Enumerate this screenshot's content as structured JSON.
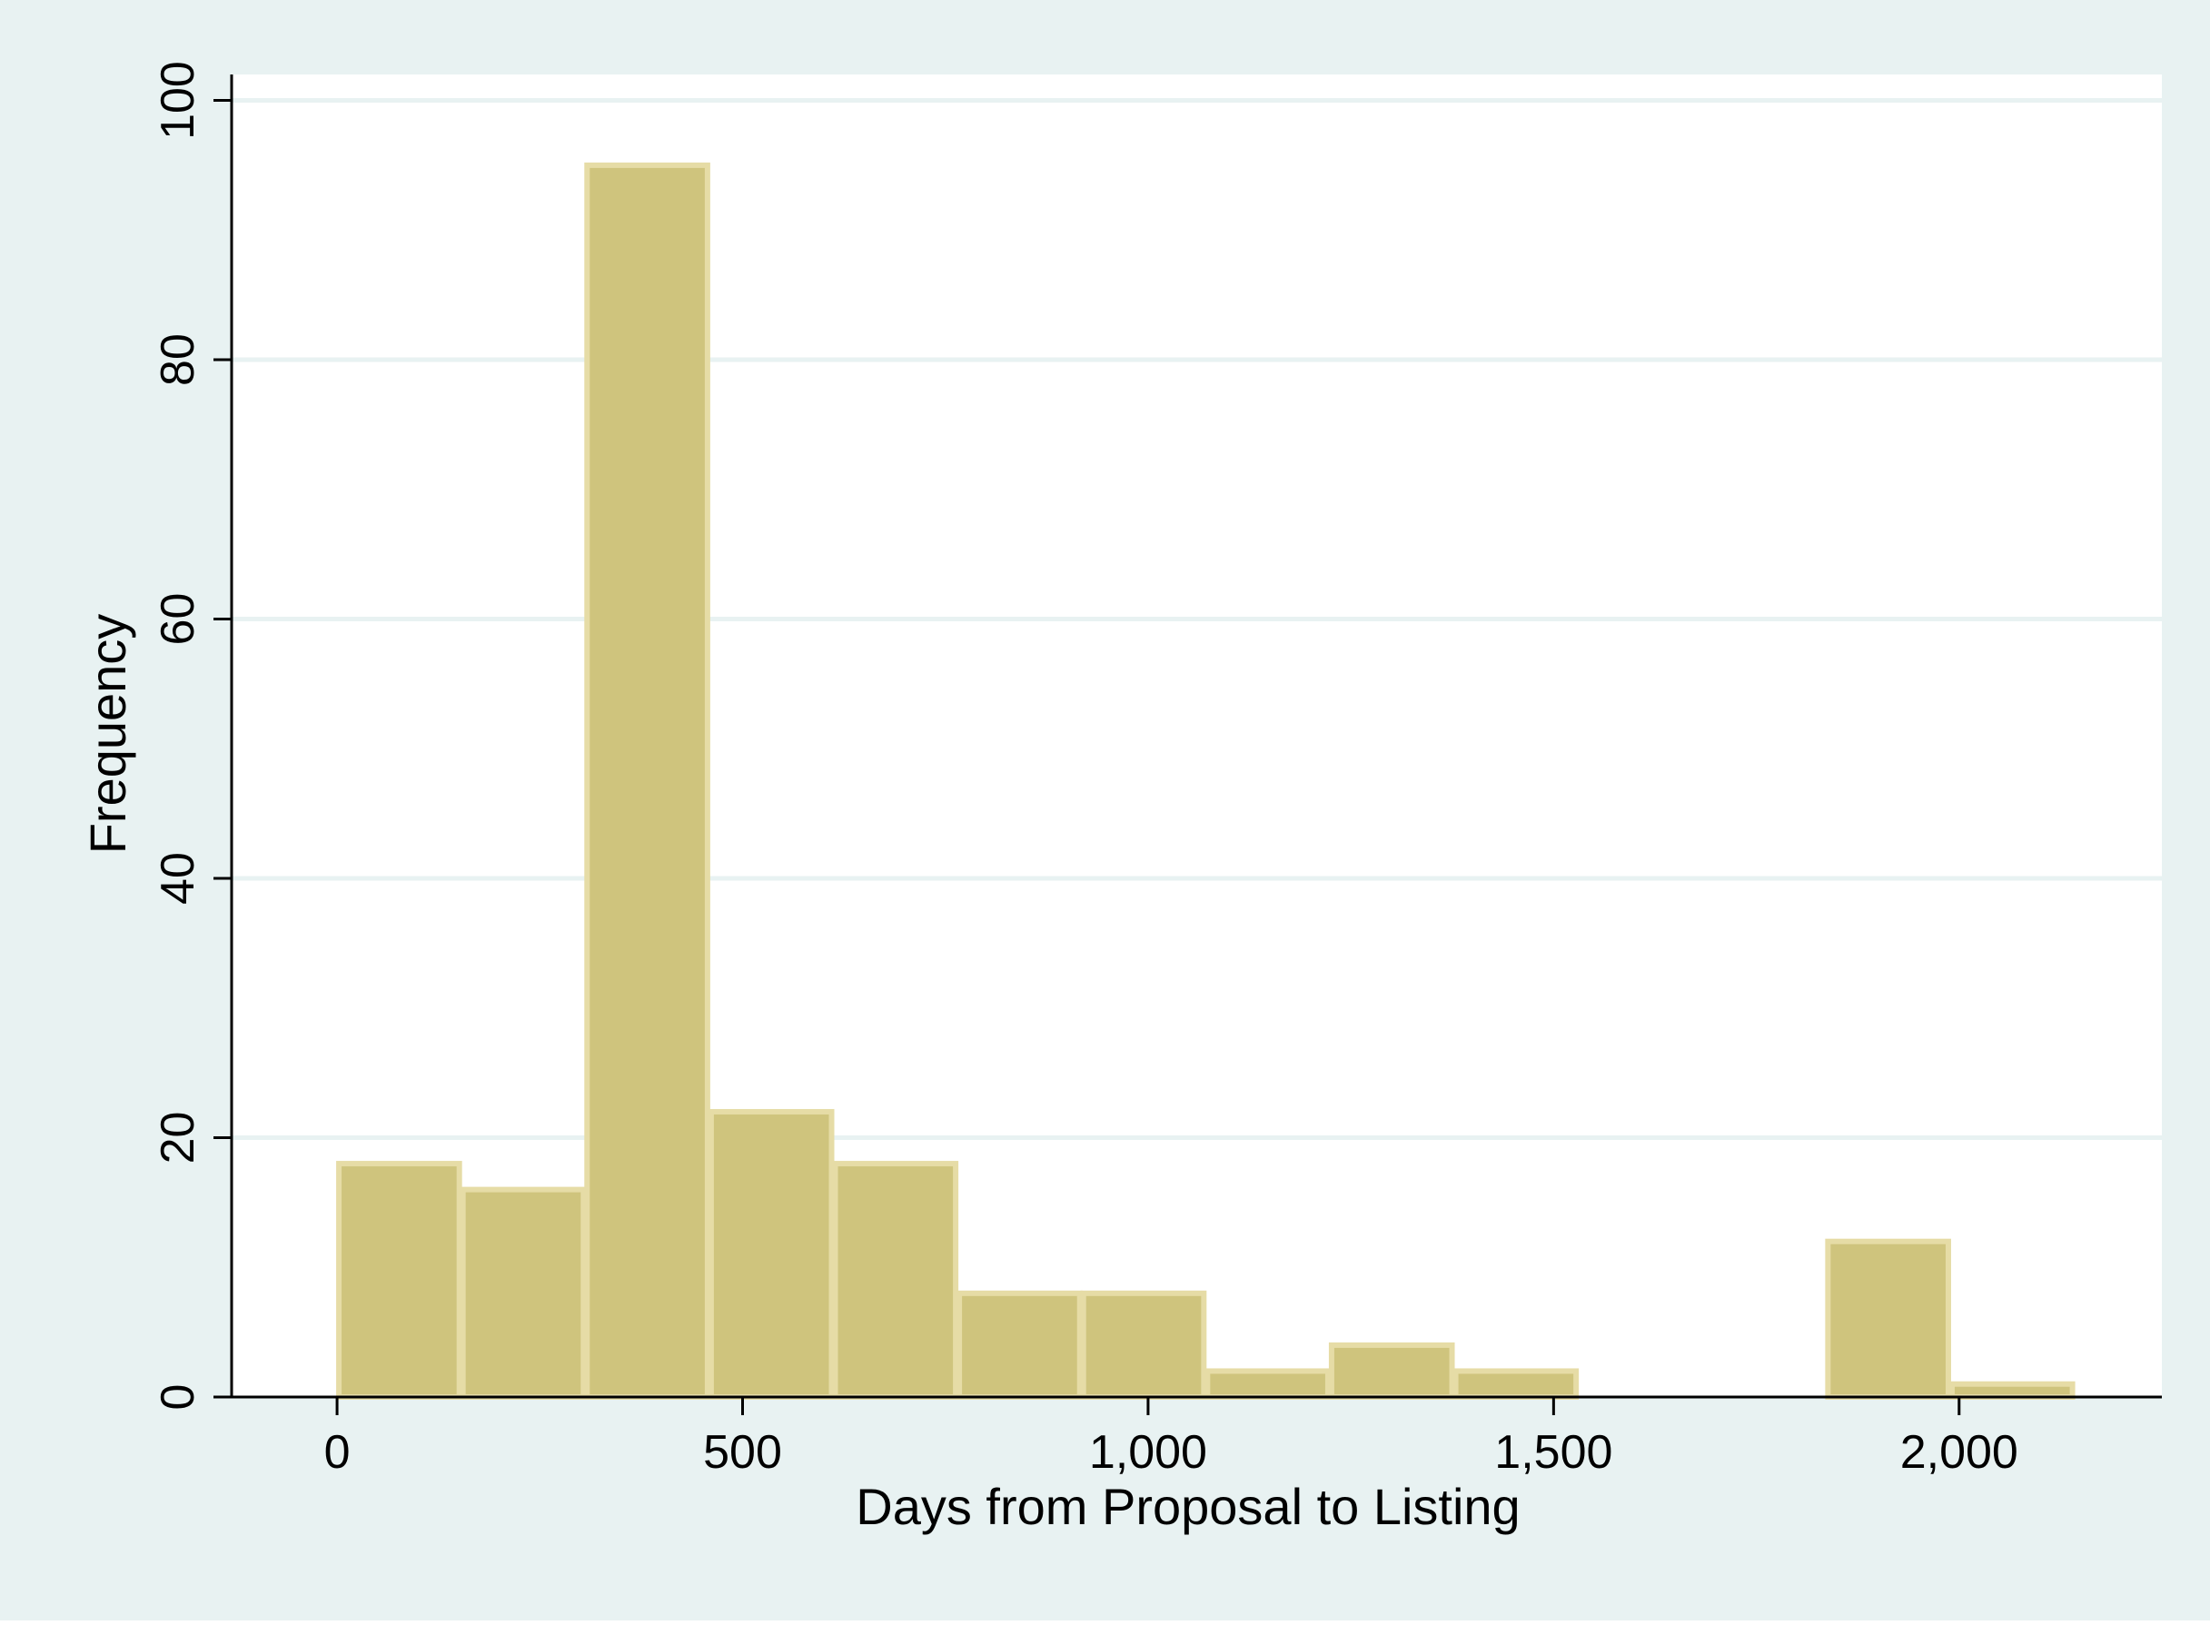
{
  "colors": {
    "outer_background": "#e8f2f2",
    "plot_background": "#ffffff",
    "gridline": "#e8f2f2",
    "bar_fill": "#cfc47d",
    "bar_edge": "#e6dca6",
    "axis": "#000000"
  },
  "chart_data": {
    "type": "bar",
    "subtype": "histogram",
    "xlabel": "Days from Proposal to Listing",
    "ylabel": "Frequency",
    "xlim": [
      -130,
      2250
    ],
    "ylim": [
      0,
      102
    ],
    "x_ticks": [
      0,
      500,
      1000,
      1500,
      2000
    ],
    "x_tick_labels": [
      "0",
      "500",
      "1,000",
      "1,500",
      "2,000"
    ],
    "y_ticks": [
      0,
      20,
      40,
      60,
      80,
      100
    ],
    "y_tick_labels": [
      "0",
      "20",
      "40",
      "60",
      "80",
      "100"
    ],
    "grid": true,
    "legend": "none",
    "bins": [
      {
        "start": 0,
        "end": 153,
        "count": 18
      },
      {
        "start": 153,
        "end": 306,
        "count": 16
      },
      {
        "start": 306,
        "end": 459,
        "count": 95
      },
      {
        "start": 459,
        "end": 612,
        "count": 22
      },
      {
        "start": 612,
        "end": 765,
        "count": 18
      },
      {
        "start": 765,
        "end": 918,
        "count": 8
      },
      {
        "start": 918,
        "end": 1071,
        "count": 8
      },
      {
        "start": 1071,
        "end": 1224,
        "count": 2
      },
      {
        "start": 1224,
        "end": 1377,
        "count": 4
      },
      {
        "start": 1377,
        "end": 1530,
        "count": 2
      },
      {
        "start": 1530,
        "end": 1683,
        "count": 0
      },
      {
        "start": 1683,
        "end": 1836,
        "count": 0
      },
      {
        "start": 1836,
        "end": 1989,
        "count": 12
      },
      {
        "start": 1989,
        "end": 2142,
        "count": 1
      }
    ]
  }
}
